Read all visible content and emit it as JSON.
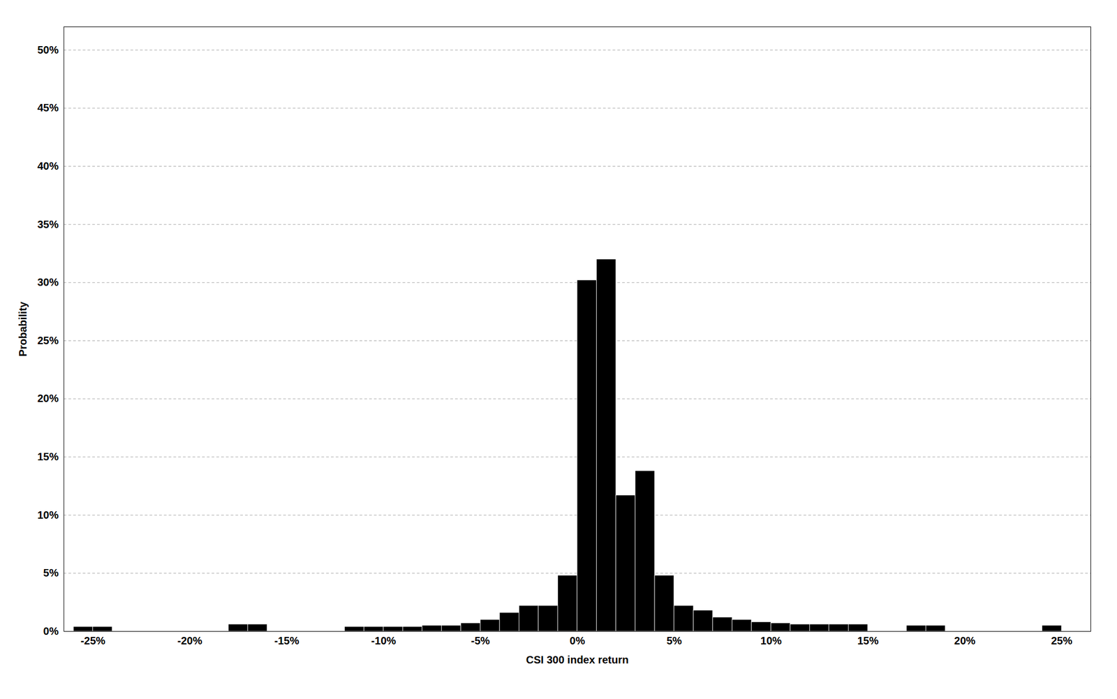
{
  "chart_data": {
    "type": "histogram",
    "xlabel": "CSI 300 index return",
    "ylabel": "Probability",
    "color": "#000000",
    "grid": "y",
    "bin_width": 0.01,
    "x": [
      -0.26,
      -0.25,
      -0.18,
      -0.17,
      -0.12,
      -0.11,
      -0.1,
      -0.09,
      -0.08,
      -0.07,
      -0.06,
      -0.05,
      -0.04,
      -0.03,
      -0.02,
      -0.01,
      0.0,
      0.01,
      0.02,
      0.03,
      0.04,
      0.05,
      0.06,
      0.07,
      0.08,
      0.09,
      0.1,
      0.11,
      0.12,
      0.13,
      0.14,
      0.17,
      0.18,
      0.24
    ],
    "values": [
      0.004,
      0.004,
      0.006,
      0.006,
      0.004,
      0.004,
      0.004,
      0.004,
      0.005,
      0.005,
      0.007,
      0.01,
      0.016,
      0.022,
      0.022,
      0.048,
      0.302,
      0.32,
      0.117,
      0.138,
      0.048,
      0.022,
      0.018,
      0.012,
      0.01,
      0.008,
      0.007,
      0.006,
      0.006,
      0.006,
      0.006,
      0.005,
      0.005,
      0.005
    ],
    "xlim": [
      -0.265,
      0.265
    ],
    "ylim": [
      0,
      0.52
    ],
    "xticks": [
      {
        "value": -0.25,
        "label": "-25%"
      },
      {
        "value": -0.2,
        "label": "-20%"
      },
      {
        "value": -0.15,
        "label": "-15%"
      },
      {
        "value": -0.1,
        "label": "-10%"
      },
      {
        "value": -0.05,
        "label": "-5%"
      },
      {
        "value": 0.0,
        "label": "0%"
      },
      {
        "value": 0.05,
        "label": "5%"
      },
      {
        "value": 0.1,
        "label": "10%"
      },
      {
        "value": 0.15,
        "label": "15%"
      },
      {
        "value": 0.2,
        "label": "20%"
      },
      {
        "value": 0.25,
        "label": "25%"
      }
    ],
    "yticks": [
      {
        "value": 0.0,
        "label": "0%"
      },
      {
        "value": 0.05,
        "label": "5%"
      },
      {
        "value": 0.1,
        "label": "10%"
      },
      {
        "value": 0.15,
        "label": "15%"
      },
      {
        "value": 0.2,
        "label": "20%"
      },
      {
        "value": 0.25,
        "label": "25%"
      },
      {
        "value": 0.3,
        "label": "30%"
      },
      {
        "value": 0.35,
        "label": "35%"
      },
      {
        "value": 0.4,
        "label": "40%"
      },
      {
        "value": 0.45,
        "label": "45%"
      },
      {
        "value": 0.5,
        "label": "50%"
      }
    ]
  }
}
